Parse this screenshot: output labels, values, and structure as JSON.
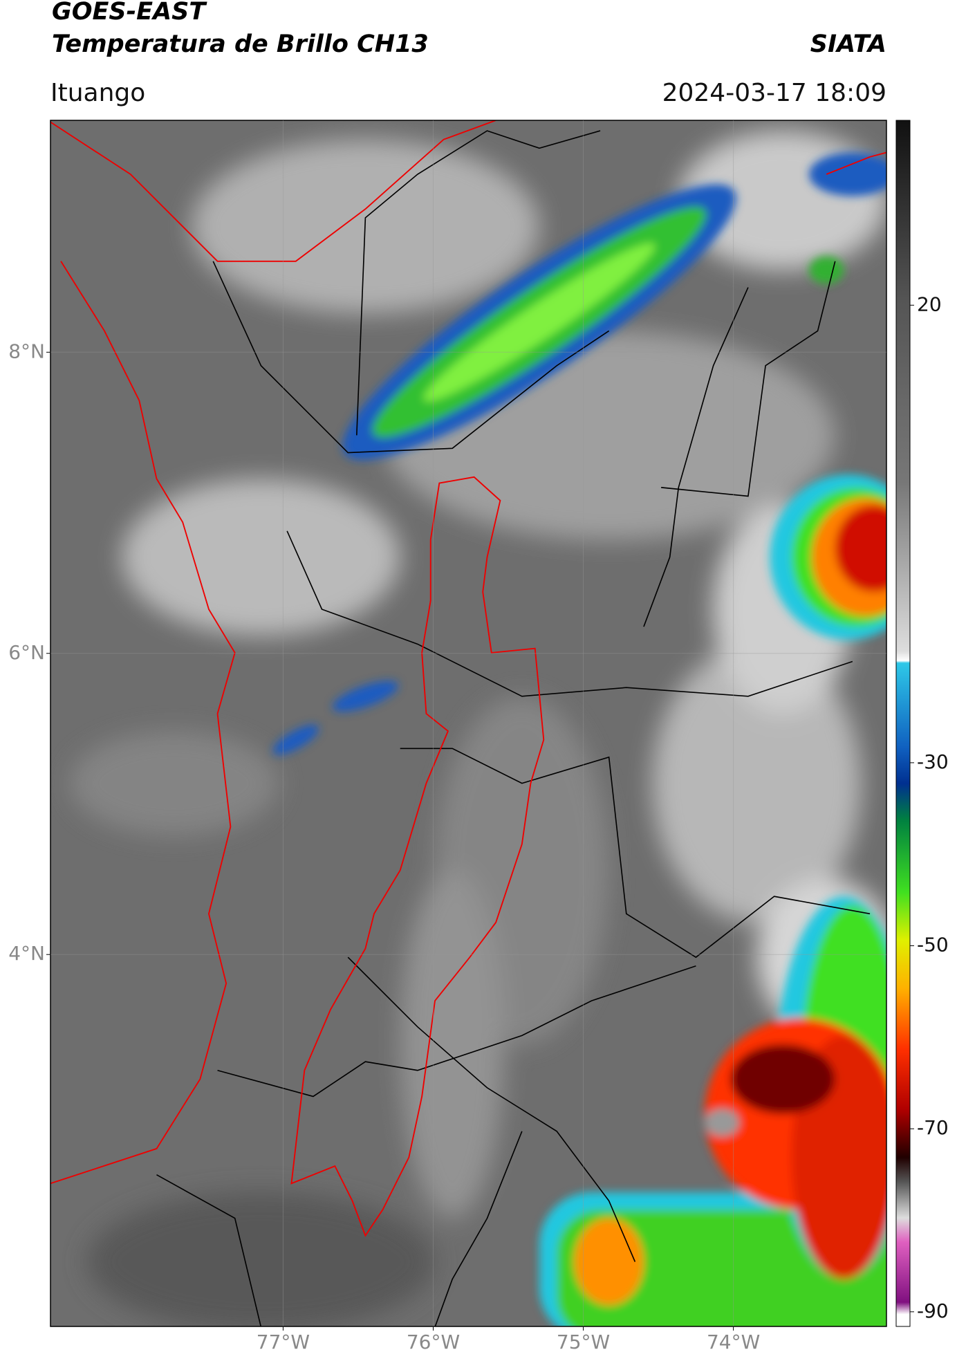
{
  "header": {
    "title": "GOES-EAST",
    "subtitle": "Temperatura de Brillo CH13",
    "source": "SIATA",
    "location": "Ituango",
    "timestamp": "2024-03-17 18:09"
  },
  "map": {
    "xlim": [
      -78.55,
      -72.98
    ],
    "ylim": [
      1.53,
      9.54
    ],
    "xticks": [
      {
        "value": -77,
        "label": "77°W"
      },
      {
        "value": -76,
        "label": "76°W"
      },
      {
        "value": -75,
        "label": "75°W"
      },
      {
        "value": -74,
        "label": "74°W"
      }
    ],
    "yticks": [
      {
        "value": 8,
        "label": "8°N"
      },
      {
        "value": 6,
        "label": "6°N"
      },
      {
        "value": 4,
        "label": "4°N"
      }
    ],
    "grid": true
  },
  "colorbar": {
    "lim": [
      -91.6,
      40.2
    ],
    "ticks": [
      20,
      -30,
      -50,
      -70,
      -90
    ]
  }
}
